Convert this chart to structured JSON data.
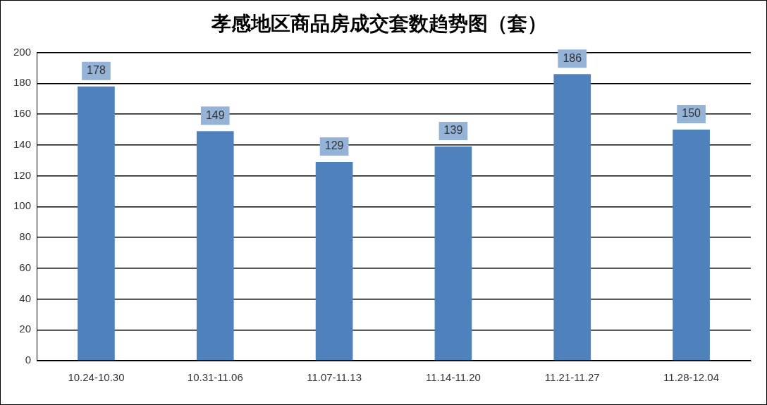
{
  "chart_data": {
    "type": "bar",
    "title": "孝感地区商品房成交套数趋势图（套）",
    "categories": [
      "10.24-10.30",
      "10.31-11.06",
      "11.07-11.13",
      "11.14-11.20",
      "11.21-11.27",
      "11.28-12.04"
    ],
    "values": [
      178,
      149,
      129,
      139,
      186,
      150
    ],
    "color": "#4f81bd",
    "ylim": [
      0,
      200
    ],
    "yticks": [
      0,
      20,
      40,
      60,
      80,
      100,
      120,
      140,
      160,
      180,
      200
    ],
    "grid": "y",
    "data_labels": true
  }
}
